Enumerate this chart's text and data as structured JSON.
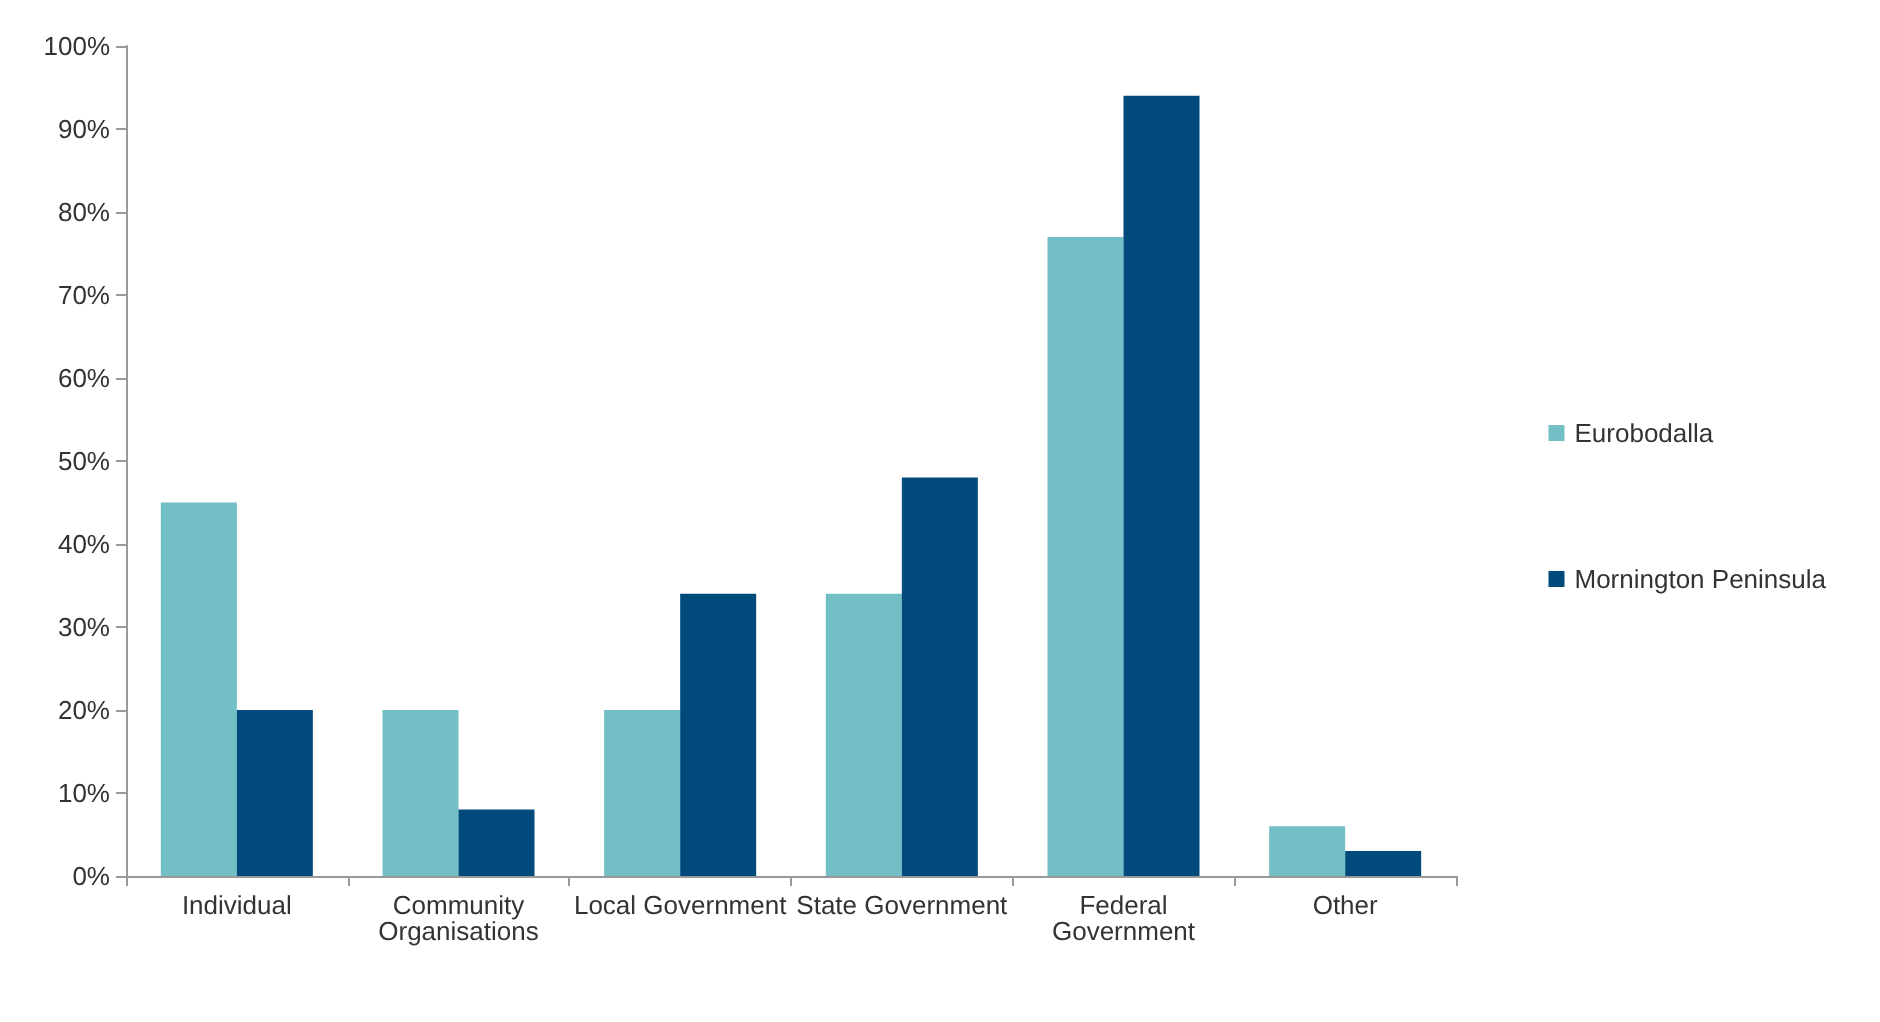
{
  "chart_data": {
    "type": "bar",
    "categories": [
      "Individual",
      "Community\nOrganisations",
      "Local Government",
      "State Government",
      "Federal\nGovernment",
      "Other"
    ],
    "series": [
      {
        "name": "Eurobodalla",
        "color": "#72bfc5",
        "values": [
          45,
          20,
          20,
          34,
          77,
          6
        ]
      },
      {
        "name": "Mornington Peninsula",
        "color": "#004a7c",
        "values": [
          20,
          8,
          34,
          48,
          94,
          3
        ]
      }
    ],
    "ylim": [
      0,
      100
    ],
    "yticks": [
      {
        "value": 0,
        "label": "0%"
      },
      {
        "value": 10,
        "label": "10%"
      },
      {
        "value": 20,
        "label": "20%"
      },
      {
        "value": 30,
        "label": "30%"
      },
      {
        "value": 40,
        "label": "40%"
      },
      {
        "value": 50,
        "label": "50%"
      },
      {
        "value": 60,
        "label": "60%"
      },
      {
        "value": 70,
        "label": "70%"
      },
      {
        "value": 80,
        "label": "80%"
      },
      {
        "value": 90,
        "label": "90%"
      },
      {
        "value": 100,
        "label": "100%"
      }
    ],
    "grid": false,
    "legend": "right"
  }
}
